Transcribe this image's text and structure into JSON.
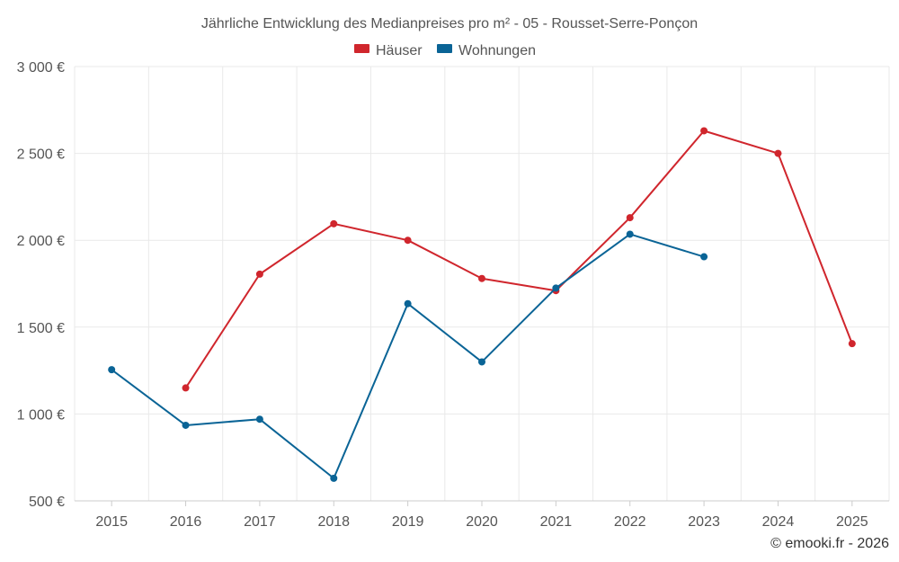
{
  "chart_data": {
    "type": "line",
    "title": "Jährliche Entwicklung des Medianpreises pro m² - 05 - Rousset-Serre-Ponçon",
    "xlabel": "",
    "ylabel": "",
    "categories": [
      "2015",
      "2016",
      "2017",
      "2018",
      "2019",
      "2020",
      "2021",
      "2022",
      "2023",
      "2024",
      "2025"
    ],
    "ylim": [
      500,
      3000
    ],
    "yticks": [
      500,
      1000,
      1500,
      2000,
      2500,
      3000
    ],
    "ytick_labels": [
      "500 €",
      "1 000 €",
      "1 500 €",
      "2 000 €",
      "2 500 €",
      "3 000 €"
    ],
    "legend_position": "top-center",
    "grid": true,
    "series": [
      {
        "name": "Häuser",
        "color": "#d0262d",
        "values": [
          null,
          1150,
          1805,
          2095,
          2000,
          1780,
          1710,
          2130,
          2630,
          2500,
          1405
        ]
      },
      {
        "name": "Wohnungen",
        "color": "#0a6496",
        "values": [
          1255,
          935,
          970,
          630,
          1635,
          1300,
          1725,
          2035,
          1905,
          null,
          null
        ]
      }
    ]
  },
  "credit": "© emooki.fr - 2026"
}
